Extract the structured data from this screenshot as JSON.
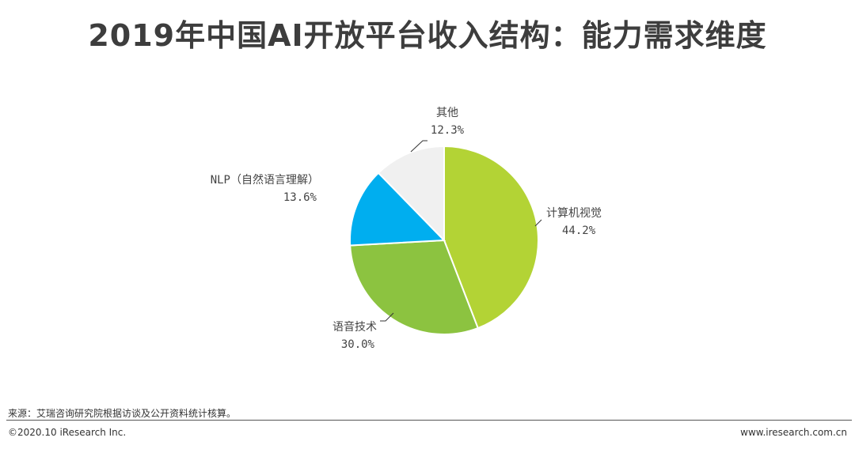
{
  "title": "2019年中国AI开放平台收入结构：能力需求维度",
  "chart_data": {
    "type": "pie",
    "start_angle_deg": 0,
    "direction": "clockwise",
    "slices": [
      {
        "label": "计算机视觉",
        "value": 44.2,
        "value_label": "44.2%",
        "color": "#b3d335"
      },
      {
        "label": "语音技术",
        "value": 30.0,
        "value_label": "30.0%",
        "color": "#8cc340"
      },
      {
        "label": "NLP（自然语言理解）",
        "value": 13.6,
        "value_label": "13.6%",
        "color": "#00aeef"
      },
      {
        "label": "其他",
        "value": 12.3,
        "value_label": "12.3%",
        "color": "#f0f0f0"
      }
    ]
  },
  "footer": {
    "source": "来源：艾瑞咨询研究院根据访谈及公开资料统计核算。",
    "copyright": "©2020.10 iResearch Inc.",
    "website": "www.iresearch.com.cn"
  }
}
